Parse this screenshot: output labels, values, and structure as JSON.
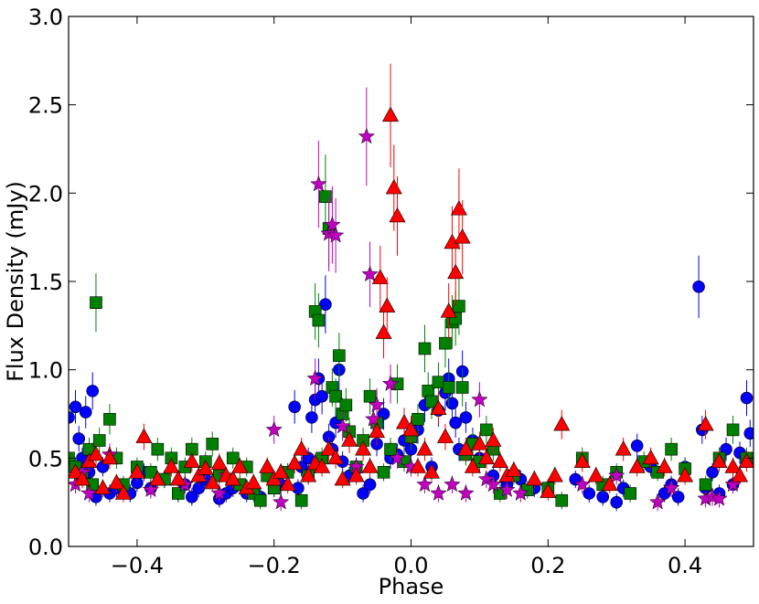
{
  "chart_data": {
    "type": "scatter",
    "title": "",
    "xlabel": "Phase",
    "ylabel": "Flux Density (mJy)",
    "xlim": [
      -0.5,
      0.5
    ],
    "ylim": [
      0.0,
      3.0
    ],
    "xticks": [
      -0.4,
      -0.2,
      0.0,
      0.2,
      0.4
    ],
    "xtick_labels": [
      "−0.4",
      "−0.2",
      "0.0",
      "0.2",
      "0.4"
    ],
    "yticks": [
      0.0,
      0.5,
      1.0,
      1.5,
      2.0,
      2.5,
      3.0
    ],
    "ytick_labels": [
      "0.0",
      "0.5",
      "1.0",
      "1.5",
      "2.0",
      "2.5",
      "3.0"
    ],
    "grid": false,
    "legend": false,
    "series": [
      {
        "marker": "circle",
        "color": "#0000ff",
        "x": [
          -0.5,
          -0.49,
          -0.485,
          -0.48,
          -0.475,
          -0.47,
          -0.465,
          -0.46,
          -0.45,
          -0.44,
          -0.43,
          -0.41,
          -0.4,
          -0.39,
          -0.38,
          -0.36,
          -0.34,
          -0.33,
          -0.32,
          -0.31,
          -0.3,
          -0.28,
          -0.27,
          -0.26,
          -0.24,
          -0.22,
          -0.2,
          -0.19,
          -0.18,
          -0.17,
          -0.165,
          -0.16,
          -0.15,
          -0.145,
          -0.14,
          -0.135,
          -0.13,
          -0.125,
          -0.12,
          -0.115,
          -0.11,
          -0.105,
          -0.1,
          -0.09,
          -0.08,
          -0.07,
          -0.06,
          -0.05,
          -0.04,
          -0.03,
          -0.02,
          -0.01,
          0.0,
          0.01,
          0.02,
          0.03,
          0.04,
          0.05,
          0.055,
          0.06,
          0.065,
          0.07,
          0.075,
          0.08,
          0.09,
          0.1,
          0.12,
          0.14,
          0.16,
          0.18,
          0.24,
          0.26,
          0.28,
          0.3,
          0.31,
          0.33,
          0.35,
          0.37,
          0.38,
          0.39,
          0.4,
          0.42,
          0.425,
          0.43,
          0.44,
          0.45,
          0.46,
          0.47,
          0.48,
          0.49,
          0.495
        ],
        "y": [
          0.73,
          0.79,
          0.61,
          0.5,
          0.76,
          0.42,
          0.88,
          0.28,
          0.45,
          0.3,
          0.33,
          0.3,
          0.36,
          0.42,
          0.33,
          0.38,
          0.3,
          0.35,
          0.28,
          0.33,
          0.38,
          0.27,
          0.3,
          0.33,
          0.3,
          0.28,
          0.33,
          0.35,
          0.42,
          0.79,
          0.33,
          0.45,
          0.5,
          0.73,
          0.83,
          0.95,
          0.85,
          1.37,
          0.62,
          0.55,
          0.7,
          1.0,
          0.48,
          0.4,
          0.45,
          0.3,
          0.35,
          0.58,
          0.75,
          0.5,
          0.52,
          0.6,
          0.55,
          0.66,
          0.8,
          0.45,
          0.77,
          0.87,
          0.95,
          0.81,
          0.7,
          0.55,
          0.99,
          0.73,
          0.6,
          0.5,
          0.4,
          0.35,
          0.38,
          0.33,
          0.38,
          0.3,
          0.28,
          0.25,
          0.33,
          0.57,
          0.45,
          0.3,
          0.35,
          0.28,
          0.45,
          1.47,
          0.66,
          0.33,
          0.42,
          0.3,
          0.55,
          0.35,
          0.53,
          0.84,
          0.64
        ]
      },
      {
        "marker": "square",
        "color": "#008000",
        "x": [
          -0.5,
          -0.49,
          -0.48,
          -0.47,
          -0.465,
          -0.46,
          -0.455,
          -0.44,
          -0.43,
          -0.42,
          -0.4,
          -0.38,
          -0.37,
          -0.36,
          -0.35,
          -0.34,
          -0.33,
          -0.32,
          -0.3,
          -0.29,
          -0.28,
          -0.26,
          -0.25,
          -0.24,
          -0.23,
          -0.22,
          -0.21,
          -0.2,
          -0.18,
          -0.16,
          -0.15,
          -0.14,
          -0.135,
          -0.13,
          -0.125,
          -0.12,
          -0.115,
          -0.11,
          -0.105,
          -0.1,
          -0.095,
          -0.09,
          -0.08,
          -0.07,
          -0.06,
          -0.05,
          -0.04,
          -0.03,
          -0.02,
          -0.01,
          0.0,
          0.01,
          0.02,
          0.025,
          0.03,
          0.04,
          0.05,
          0.055,
          0.06,
          0.065,
          0.07,
          0.075,
          0.08,
          0.09,
          0.1,
          0.11,
          0.12,
          0.13,
          0.15,
          0.17,
          0.2,
          0.22,
          0.25,
          0.28,
          0.3,
          0.32,
          0.34,
          0.36,
          0.38,
          0.4,
          0.43,
          0.45,
          0.47,
          0.49
        ],
        "y": [
          0.5,
          0.45,
          0.4,
          0.55,
          0.35,
          1.38,
          0.6,
          0.72,
          0.5,
          0.35,
          0.45,
          0.42,
          0.55,
          0.38,
          0.5,
          0.3,
          0.45,
          0.55,
          0.48,
          0.58,
          0.4,
          0.5,
          0.35,
          0.45,
          0.3,
          0.26,
          0.4,
          0.33,
          0.42,
          0.26,
          0.4,
          1.33,
          1.28,
          0.5,
          1.98,
          1.8,
          0.9,
          0.85,
          1.08,
          0.75,
          0.8,
          0.65,
          0.45,
          0.6,
          0.85,
          0.7,
          0.42,
          0.55,
          0.92,
          0.48,
          0.62,
          0.72,
          1.12,
          0.88,
          0.82,
          0.93,
          1.15,
          0.9,
          1.27,
          1.29,
          1.36,
          0.9,
          0.52,
          0.58,
          0.48,
          0.66,
          0.55,
          0.3,
          0.4,
          0.32,
          0.33,
          0.26,
          0.5,
          0.35,
          0.42,
          0.3,
          0.48,
          0.42,
          0.55,
          0.44,
          0.35,
          0.5,
          0.66,
          0.5
        ]
      },
      {
        "marker": "star",
        "color": "#bf00bf",
        "x": [
          -0.49,
          -0.48,
          -0.47,
          -0.44,
          -0.38,
          -0.33,
          -0.28,
          -0.27,
          -0.2,
          -0.19,
          -0.14,
          -0.135,
          -0.12,
          -0.115,
          -0.11,
          -0.1,
          -0.08,
          -0.065,
          -0.06,
          -0.055,
          -0.05,
          -0.03,
          -0.02,
          0.0,
          0.02,
          0.04,
          0.06,
          0.08,
          0.1,
          0.11,
          0.12,
          0.14,
          0.16,
          0.25,
          0.3,
          0.36,
          0.38,
          0.43,
          0.44,
          0.45,
          0.47
        ],
        "y": [
          0.35,
          0.42,
          0.3,
          0.52,
          0.32,
          0.35,
          0.3,
          0.4,
          0.66,
          0.25,
          0.95,
          2.05,
          1.77,
          1.82,
          1.76,
          0.68,
          0.45,
          2.32,
          1.54,
          0.72,
          0.8,
          0.92,
          0.5,
          0.45,
          0.35,
          0.3,
          0.35,
          0.3,
          0.83,
          0.38,
          0.35,
          0.32,
          0.3,
          0.35,
          0.4,
          0.25,
          0.33,
          0.27,
          0.28,
          0.27,
          0.35
        ]
      },
      {
        "marker": "triangle",
        "color": "#ff0000",
        "x": [
          -0.49,
          -0.48,
          -0.47,
          -0.46,
          -0.45,
          -0.44,
          -0.43,
          -0.42,
          -0.4,
          -0.39,
          -0.37,
          -0.35,
          -0.34,
          -0.32,
          -0.31,
          -0.3,
          -0.29,
          -0.28,
          -0.27,
          -0.26,
          -0.25,
          -0.24,
          -0.23,
          -0.21,
          -0.2,
          -0.19,
          -0.18,
          -0.17,
          -0.16,
          -0.15,
          -0.14,
          -0.13,
          -0.12,
          -0.11,
          -0.1,
          -0.09,
          -0.08,
          -0.07,
          -0.06,
          -0.05,
          -0.045,
          -0.04,
          -0.035,
          -0.03,
          -0.025,
          -0.02,
          -0.01,
          0.0,
          0.01,
          0.02,
          0.03,
          0.04,
          0.05,
          0.055,
          0.06,
          0.065,
          0.07,
          0.075,
          0.08,
          0.09,
          0.1,
          0.11,
          0.12,
          0.13,
          0.14,
          0.15,
          0.18,
          0.2,
          0.21,
          0.22,
          0.25,
          0.27,
          0.29,
          0.31,
          0.33,
          0.35,
          0.37,
          0.4,
          0.43,
          0.45,
          0.47,
          0.48,
          0.49
        ],
        "y": [
          0.42,
          0.38,
          0.48,
          0.52,
          0.33,
          0.5,
          0.36,
          0.3,
          0.42,
          0.62,
          0.38,
          0.45,
          0.38,
          0.48,
          0.4,
          0.44,
          0.36,
          0.47,
          0.4,
          0.38,
          0.45,
          0.33,
          0.36,
          0.45,
          0.38,
          0.42,
          0.35,
          0.47,
          0.55,
          0.4,
          0.47,
          0.45,
          0.55,
          0.5,
          0.38,
          0.6,
          0.4,
          0.55,
          0.45,
          0.65,
          1.52,
          1.21,
          1.36,
          2.44,
          2.03,
          1.87,
          0.7,
          0.66,
          0.45,
          0.55,
          0.42,
          0.78,
          0.62,
          1.33,
          1.72,
          1.55,
          1.91,
          1.75,
          0.55,
          0.45,
          0.58,
          0.5,
          0.6,
          0.48,
          0.4,
          0.43,
          0.38,
          0.31,
          0.4,
          0.69,
          0.48,
          0.4,
          0.35,
          0.55,
          0.45,
          0.5,
          0.45,
          0.4,
          0.69,
          0.48,
          0.45,
          0.4,
          0.48
        ]
      }
    ]
  }
}
